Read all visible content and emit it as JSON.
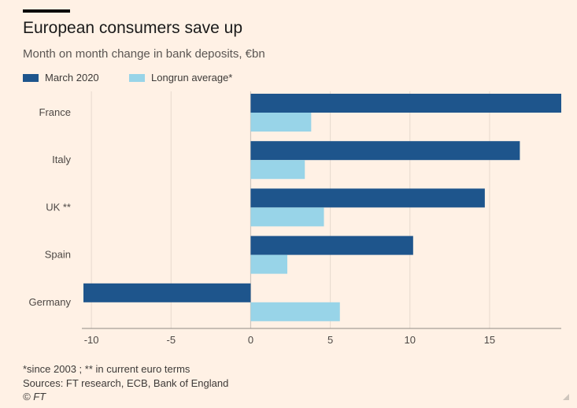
{
  "header": {
    "title": "European consumers save up",
    "subtitle": "Month on month change in bank deposits, €bn"
  },
  "colors": {
    "background": "#fff1e5",
    "series_1": "#1e558c",
    "series_2": "#98d4e8",
    "rule": "#000000"
  },
  "chart_data": {
    "type": "bar",
    "orientation": "horizontal",
    "title": "European consumers save up",
    "subtitle": "Month on month change in bank deposits, €bn",
    "xlabel": "",
    "ylabel": "",
    "categories": [
      "France",
      "Italy",
      "UK **",
      "Spain",
      "Germany"
    ],
    "series": [
      {
        "name": "March 2020",
        "color": "#1e558c",
        "values": [
          19.5,
          16.9,
          14.7,
          10.2,
          -10.5
        ]
      },
      {
        "name": "Longrun average*",
        "color": "#98d4e8",
        "values": [
          3.8,
          3.4,
          4.6,
          2.3,
          5.6
        ]
      }
    ],
    "xlim": [
      -10.5,
      19.5
    ],
    "xticks": [
      -10,
      -5,
      0,
      5,
      10,
      15
    ],
    "xtick_labels": [
      "-10",
      "-5",
      "0",
      "5",
      "10",
      "15"
    ],
    "grid": "vertical",
    "legend": "top-left"
  },
  "footer": {
    "note": "*since 2003 ; ** in current euro terms",
    "sources": "Sources: FT research, ECB, Bank of England",
    "credit": "© FT"
  }
}
